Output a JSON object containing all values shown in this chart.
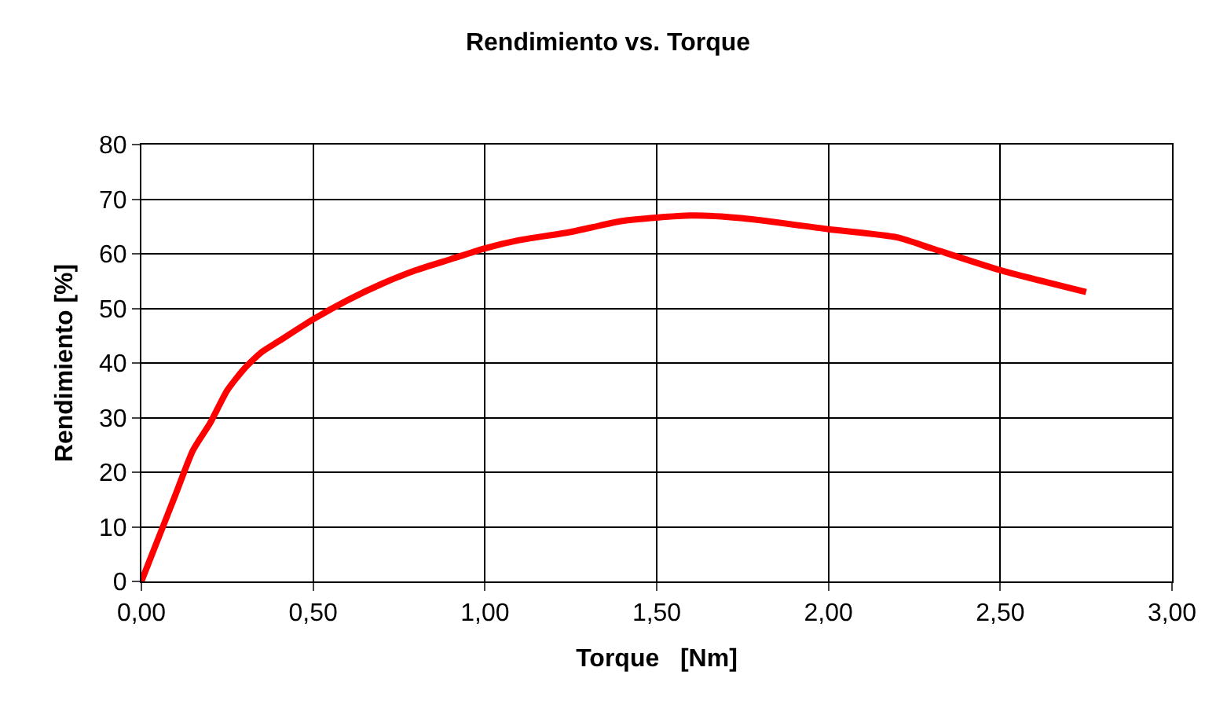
{
  "chart_data": {
    "type": "line",
    "title": "Rendimiento vs. Torque",
    "xlabel": "Torque   [Nm]",
    "ylabel": "Rendimiento [%]",
    "x": [
      0,
      0.05,
      0.1,
      0.15,
      0.2,
      0.25,
      0.3,
      0.35,
      0.4,
      0.5,
      0.6,
      0.7,
      0.8,
      0.9,
      1.0,
      1.1,
      1.25,
      1.4,
      1.6,
      1.75,
      2.0,
      2.2,
      2.3,
      2.5,
      2.75
    ],
    "series": [
      {
        "color": "#ff0000",
        "values": [
          0,
          8,
          16,
          24,
          29,
          35,
          39,
          42,
          44,
          48,
          51.5,
          54.5,
          57,
          59,
          61,
          62.5,
          64,
          66,
          67,
          66.5,
          64.5,
          63,
          61,
          57,
          53
        ]
      }
    ],
    "xlim": [
      0,
      3
    ],
    "xticks": [
      {
        "value": 0,
        "label": "0,00"
      },
      {
        "value": 0.5,
        "label": "0,50"
      },
      {
        "value": 1,
        "label": "1,00"
      },
      {
        "value": 1.5,
        "label": "1,50"
      },
      {
        "value": 2,
        "label": "2,00"
      },
      {
        "value": 2.5,
        "label": "2,50"
      },
      {
        "value": 3,
        "label": "3,00"
      }
    ],
    "ylim": [
      0,
      80
    ],
    "yticks": [
      0,
      10,
      20,
      30,
      40,
      50,
      60,
      70,
      80
    ],
    "grid": true,
    "marker": "none",
    "line_style": "solid"
  }
}
